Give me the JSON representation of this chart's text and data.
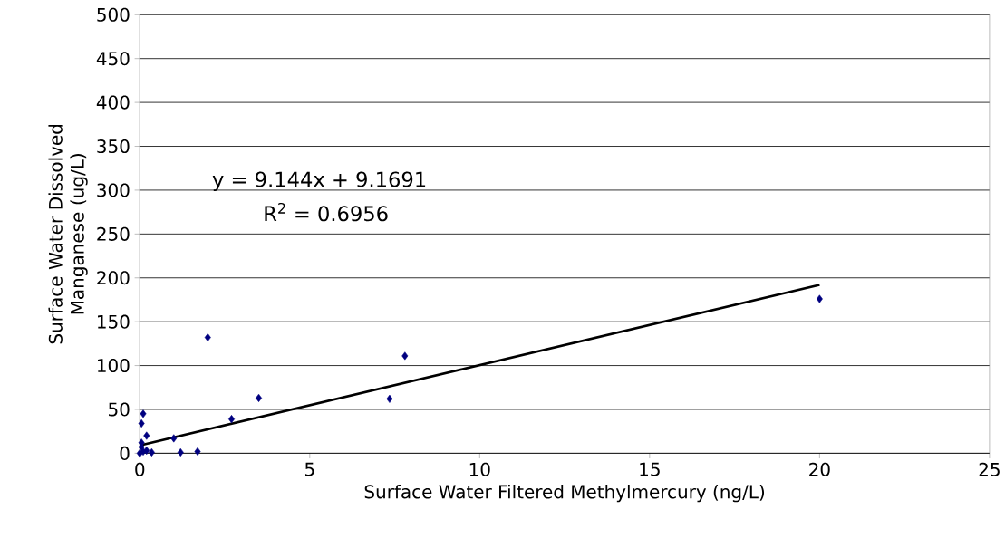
{
  "chart_data": {
    "type": "scatter",
    "xlabel": "Surface Water Filtered Methylmercury (ng/L)",
    "ylabel": "Surface Water Dissolved Manganese (ug/L)",
    "xlim": [
      0,
      25
    ],
    "xticks": [
      0,
      5,
      10,
      15,
      20,
      25
    ],
    "ylim": [
      0,
      500
    ],
    "yticks": [
      0,
      50,
      100,
      150,
      200,
      250,
      300,
      350,
      400,
      450,
      500
    ],
    "grid": "y",
    "series": [
      {
        "color": "#000080",
        "marker": "diamond",
        "x": [
          0.1,
          0.05,
          0.2,
          0.05,
          1.0,
          2.0,
          2.7,
          3.5,
          7.35,
          7.8,
          20.0,
          1.2,
          1.7,
          0.35,
          0.0,
          0.1,
          0.2,
          0.05
        ],
        "values": [
          45,
          34,
          20,
          12,
          17,
          132,
          39,
          63,
          62,
          111,
          176,
          1,
          2,
          1,
          0,
          2,
          3,
          7
        ]
      },
      {
        "type": "line",
        "color": "#000000",
        "marker": "none",
        "line_style": "solid",
        "x": [
          0,
          20
        ],
        "values": [
          9,
          192
        ]
      }
    ],
    "annotations": [
      "y = 9.144x + 9.1691",
      "R$^{2}$ = 0.6956"
    ]
  }
}
